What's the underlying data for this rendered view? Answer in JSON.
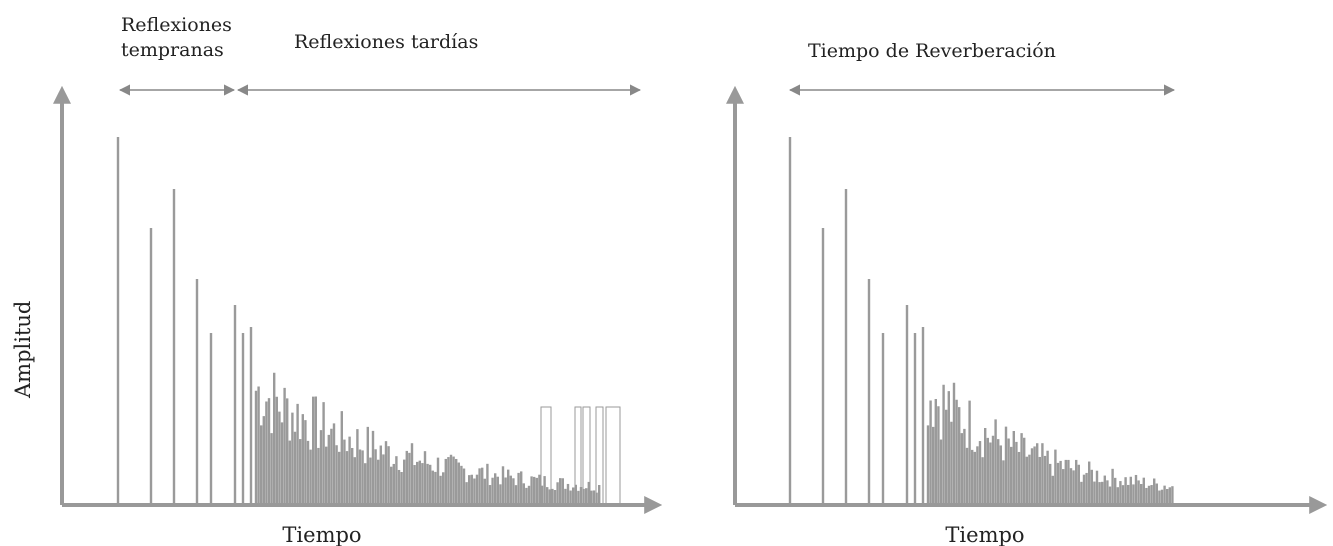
{
  "colors": {
    "axis": "#999999",
    "spike": "#9a9a9a",
    "arrow": "#888888",
    "text": "#222222"
  },
  "labels": {
    "y_axis": "Amplitud",
    "left_x_axis": "Tiempo",
    "right_x_axis": "Tiempo",
    "early_reflections": "Reflexiones\ntempranas",
    "late_reflections": "Reflexiones tardías",
    "reverberation_time": "Tiempo de Reverberación"
  }
}
